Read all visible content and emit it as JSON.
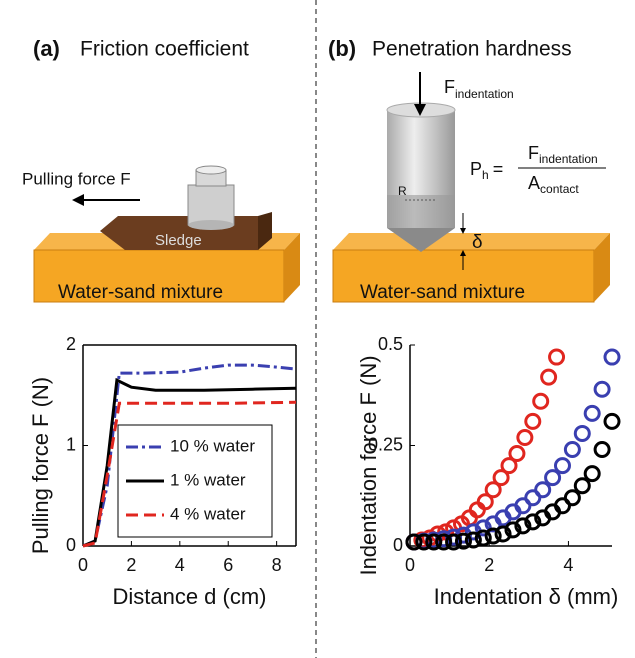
{
  "panels": [
    {
      "label": "(a)",
      "title": "Friction coefficient",
      "force_label": "Pulling force F",
      "sledge_label": "Sledge",
      "mixture_label": "Water-sand mixture"
    },
    {
      "label": "(b)",
      "title": "Penetration hardness",
      "force_symbol": "F",
      "force_subscript": "indentation",
      "formula": {
        "lhs": "P",
        "lhs_subscript": "h",
        "equals": "=",
        "numerator": "F",
        "numerator_subscript": "indentation",
        "denominator": "A",
        "denominator_subscript": "contact"
      },
      "radius_label": "R",
      "depth_label": "δ",
      "mixture_label": "Water-sand mixture"
    }
  ],
  "chart_data": [
    {
      "type": "line",
      "xlabel": "Distance d (cm)",
      "ylabel": "Pulling force F (N)",
      "xlim": [
        0,
        8.8
      ],
      "ylim": [
        0,
        2
      ],
      "xticks": [
        0,
        2,
        4,
        6,
        8
      ],
      "yticks": [
        0,
        1,
        2
      ],
      "legend": "lower right",
      "series": [
        {
          "name": "10 % water",
          "color": "#3a3fb0",
          "linestyle": "dashdot",
          "x": [
            0,
            0.5,
            1,
            1.5,
            2.5,
            4,
            5,
            6,
            7,
            8,
            8.8
          ],
          "values": [
            0,
            0.05,
            0.6,
            1.72,
            1.72,
            1.73,
            1.77,
            1.8,
            1.8,
            1.78,
            1.76
          ]
        },
        {
          "name": "1 %  water",
          "color": "#000000",
          "linestyle": "solid",
          "x": [
            0,
            0.5,
            1,
            1.4,
            2,
            3,
            5,
            7,
            8.8
          ],
          "values": [
            0,
            0.05,
            0.8,
            1.65,
            1.58,
            1.55,
            1.55,
            1.56,
            1.57
          ]
        },
        {
          "name": "4 %  water",
          "color": "#e0261f",
          "linestyle": "dashed",
          "x": [
            0,
            0.5,
            1,
            1.5,
            3,
            6,
            8.8
          ],
          "values": [
            0,
            0.03,
            0.7,
            1.42,
            1.42,
            1.42,
            1.43
          ]
        }
      ]
    },
    {
      "type": "scatter",
      "xlabel": "Indentation δ (mm)",
      "ylabel": "Indentation force F (N)",
      "xlim": [
        0,
        5.1
      ],
      "ylim": [
        0,
        0.5
      ],
      "xticks": [
        0,
        2,
        4
      ],
      "yticks": [
        0,
        0.25,
        0.5
      ],
      "series": [
        {
          "color": "#e0261f",
          "x": [
            0.1,
            0.3,
            0.5,
            0.7,
            0.9,
            1.1,
            1.3,
            1.5,
            1.7,
            1.9,
            2.1,
            2.3,
            2.5,
            2.7,
            2.9,
            3.1,
            3.3,
            3.5,
            3.7
          ],
          "values": [
            0.01,
            0.015,
            0.02,
            0.03,
            0.035,
            0.045,
            0.055,
            0.07,
            0.09,
            0.11,
            0.14,
            0.17,
            0.2,
            0.23,
            0.27,
            0.31,
            0.36,
            0.42,
            0.47
          ]
        },
        {
          "color": "#3a3fb0",
          "x": [
            0.1,
            0.35,
            0.6,
            0.85,
            1.1,
            1.35,
            1.6,
            1.85,
            2.1,
            2.35,
            2.6,
            2.85,
            3.1,
            3.35,
            3.6,
            3.85,
            4.1,
            4.35,
            4.6,
            4.85,
            5.1
          ],
          "values": [
            0.01,
            0.012,
            0.015,
            0.018,
            0.022,
            0.027,
            0.035,
            0.045,
            0.055,
            0.07,
            0.085,
            0.1,
            0.12,
            0.14,
            0.17,
            0.2,
            0.24,
            0.28,
            0.33,
            0.39,
            0.47
          ]
        },
        {
          "color": "#000000",
          "x": [
            0.1,
            0.35,
            0.6,
            0.85,
            1.1,
            1.35,
            1.6,
            1.85,
            2.1,
            2.35,
            2.6,
            2.85,
            3.1,
            3.35,
            3.6,
            3.85,
            4.1,
            4.35,
            4.6,
            4.85,
            5.1
          ],
          "values": [
            0.01,
            0.01,
            0.01,
            0.01,
            0.01,
            0.012,
            0.015,
            0.02,
            0.025,
            0.03,
            0.04,
            0.05,
            0.06,
            0.07,
            0.085,
            0.1,
            0.12,
            0.15,
            0.18,
            0.24,
            0.31
          ]
        }
      ]
    }
  ]
}
